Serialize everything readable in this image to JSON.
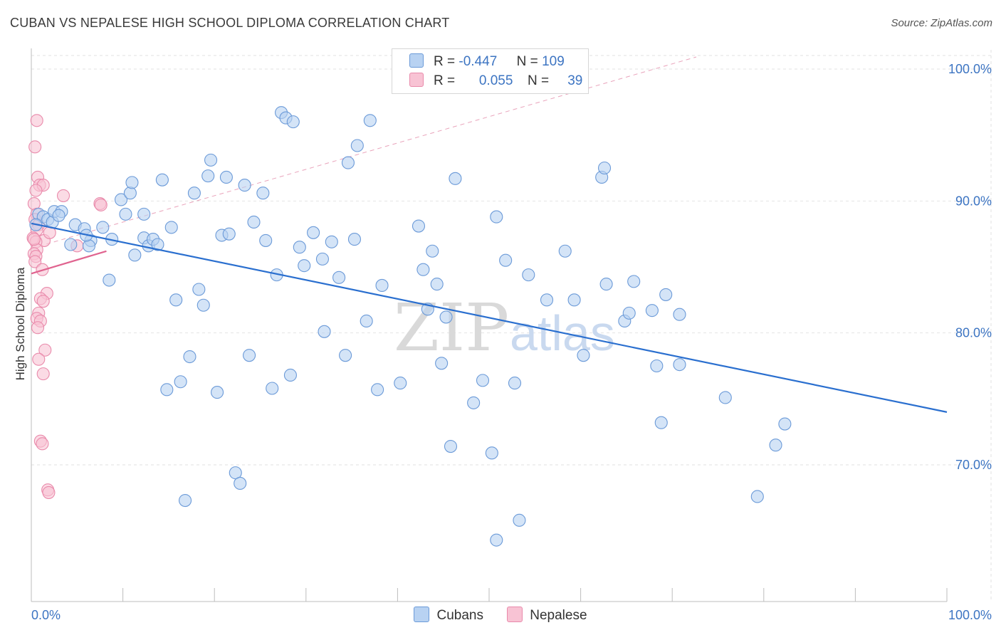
{
  "title": "CUBAN VS NEPALESE HIGH SCHOOL DIPLOMA CORRELATION CHART",
  "source": "Source: ZipAtlas.com",
  "watermark": {
    "zip": "ZIP",
    "atlas": "atlas"
  },
  "legend": {
    "rows": [
      {
        "r_label": "R =",
        "r_value": "-0.447",
        "n_label": "N =",
        "n_value": "109"
      },
      {
        "r_label": "R =",
        "r_value": "0.055",
        "n_label": "N =",
        "n_value": "39"
      }
    ]
  },
  "colors": {
    "cubans_fill": "#b8d2f2",
    "cubans_stroke": "#6b9ad8",
    "cubans_line": "#2a6fcf",
    "nepalese_fill": "#f8c3d4",
    "nepalese_stroke": "#e98aab",
    "nepalese_line": "#e0638f",
    "grid": "#e2e2e2",
    "tick_text": "#3c74c2"
  },
  "chart_data": {
    "type": "scatter",
    "ylabel": "High School Diploma",
    "xlim": [
      0,
      100
    ],
    "ylim": [
      61,
      101
    ],
    "x_tick_labels": {
      "left": "0.0%",
      "right": "100.0%"
    },
    "y_ticks": [
      {
        "value": 100,
        "label": "100.0%"
      },
      {
        "value": 90,
        "label": "90.0%"
      },
      {
        "value": 80,
        "label": "80.0%"
      },
      {
        "value": 70,
        "label": "70.0%"
      }
    ],
    "grid": true,
    "legend_position": "top-center",
    "series": [
      {
        "name": "Cubans",
        "trend": {
          "x1": 0,
          "y1": 88.3,
          "x2": 100,
          "y2": 74.0
        },
        "points": [
          [
            0.8,
            89.0
          ],
          [
            1.3,
            88.8
          ],
          [
            1.8,
            88.6
          ],
          [
            2.3,
            88.4
          ],
          [
            0.5,
            88.2
          ],
          [
            2.5,
            89.2
          ],
          [
            3.3,
            89.2
          ],
          [
            4.8,
            88.2
          ],
          [
            5.8,
            87.9
          ],
          [
            7.8,
            88.0
          ],
          [
            4.3,
            86.7
          ],
          [
            6.5,
            87.0
          ],
          [
            6.3,
            86.6
          ],
          [
            8.8,
            87.1
          ],
          [
            8.5,
            84.0
          ],
          [
            9.8,
            90.1
          ],
          [
            10.3,
            89.0
          ],
          [
            10.8,
            90.6
          ],
          [
            11.0,
            91.4
          ],
          [
            11.3,
            85.9
          ],
          [
            12.3,
            89.0
          ],
          [
            12.3,
            87.2
          ],
          [
            12.8,
            86.6
          ],
          [
            13.3,
            87.1
          ],
          [
            13.8,
            86.7
          ],
          [
            14.3,
            91.6
          ],
          [
            15.3,
            88.0
          ],
          [
            14.8,
            75.7
          ],
          [
            15.8,
            82.5
          ],
          [
            16.3,
            76.3
          ],
          [
            16.8,
            67.3
          ],
          [
            17.3,
            78.2
          ],
          [
            17.8,
            90.6
          ],
          [
            18.3,
            83.3
          ],
          [
            18.8,
            82.1
          ],
          [
            19.3,
            91.9
          ],
          [
            19.6,
            93.1
          ],
          [
            20.3,
            75.5
          ],
          [
            20.8,
            87.4
          ],
          [
            21.3,
            91.8
          ],
          [
            21.6,
            87.5
          ],
          [
            22.3,
            69.4
          ],
          [
            22.8,
            68.6
          ],
          [
            23.3,
            91.2
          ],
          [
            23.8,
            78.3
          ],
          [
            24.3,
            88.4
          ],
          [
            25.3,
            90.6
          ],
          [
            25.6,
            87.0
          ],
          [
            26.3,
            75.8
          ],
          [
            26.8,
            84.4
          ],
          [
            27.3,
            96.7
          ],
          [
            27.8,
            96.3
          ],
          [
            28.3,
            76.8
          ],
          [
            28.6,
            96.0
          ],
          [
            29.3,
            86.5
          ],
          [
            29.8,
            85.1
          ],
          [
            30.8,
            87.6
          ],
          [
            31.8,
            85.6
          ],
          [
            32.0,
            80.1
          ],
          [
            32.8,
            86.9
          ],
          [
            33.6,
            84.2
          ],
          [
            34.3,
            78.3
          ],
          [
            34.6,
            92.9
          ],
          [
            35.3,
            87.1
          ],
          [
            35.6,
            94.2
          ],
          [
            36.6,
            80.9
          ],
          [
            37.8,
            75.7
          ],
          [
            38.3,
            83.6
          ],
          [
            40.3,
            76.2
          ],
          [
            42.3,
            88.1
          ],
          [
            42.8,
            84.8
          ],
          [
            43.3,
            81.8
          ],
          [
            43.8,
            86.2
          ],
          [
            44.3,
            83.7
          ],
          [
            44.8,
            77.7
          ],
          [
            45.3,
            81.2
          ],
          [
            45.8,
            71.4
          ],
          [
            46.3,
            91.7
          ],
          [
            48.3,
            74.7
          ],
          [
            49.3,
            76.4
          ],
          [
            50.3,
            70.9
          ],
          [
            50.8,
            88.8
          ],
          [
            51.8,
            85.5
          ],
          [
            52.8,
            76.2
          ],
          [
            53.3,
            65.8
          ],
          [
            54.3,
            84.4
          ],
          [
            56.3,
            82.5
          ],
          [
            58.3,
            86.2
          ],
          [
            60.3,
            78.3
          ],
          [
            62.3,
            91.8
          ],
          [
            62.6,
            92.5
          ],
          [
            62.8,
            83.7
          ],
          [
            64.8,
            80.9
          ],
          [
            65.3,
            81.5
          ],
          [
            65.8,
            83.9
          ],
          [
            67.8,
            81.7
          ],
          [
            68.3,
            77.5
          ],
          [
            68.8,
            73.2
          ],
          [
            69.3,
            82.9
          ],
          [
            70.8,
            81.4
          ],
          [
            70.8,
            77.6
          ],
          [
            75.8,
            75.1
          ],
          [
            79.3,
            67.6
          ],
          [
            81.3,
            71.5
          ],
          [
            82.3,
            73.1
          ],
          [
            50.8,
            64.3
          ],
          [
            59.3,
            82.5
          ],
          [
            3.0,
            88.9
          ],
          [
            37.0,
            96.1
          ],
          [
            6.0,
            87.4
          ]
        ]
      },
      {
        "name": "Nepalese",
        "trend": {
          "x1": 0,
          "y1": 84.5,
          "x2": 8.2,
          "y2": 86.2
        },
        "points": [
          [
            0.6,
            96.1
          ],
          [
            0.4,
            94.1
          ],
          [
            0.7,
            91.8
          ],
          [
            0.9,
            91.2
          ],
          [
            1.3,
            91.2
          ],
          [
            0.5,
            90.8
          ],
          [
            0.3,
            89.8
          ],
          [
            0.6,
            89.0
          ],
          [
            0.4,
            88.6
          ],
          [
            0.8,
            88.2
          ],
          [
            0.6,
            87.8
          ],
          [
            0.2,
            87.2
          ],
          [
            1.4,
            87.0
          ],
          [
            0.5,
            86.9
          ],
          [
            0.6,
            86.3
          ],
          [
            0.3,
            86.0
          ],
          [
            0.5,
            85.8
          ],
          [
            0.4,
            85.4
          ],
          [
            1.2,
            84.8
          ],
          [
            3.5,
            90.4
          ],
          [
            7.5,
            89.8
          ],
          [
            7.6,
            89.7
          ],
          [
            2.0,
            87.6
          ],
          [
            5.0,
            86.6
          ],
          [
            1.7,
            83.0
          ],
          [
            1.0,
            82.6
          ],
          [
            1.3,
            82.4
          ],
          [
            0.8,
            81.5
          ],
          [
            0.6,
            81.1
          ],
          [
            1.0,
            80.9
          ],
          [
            0.7,
            80.4
          ],
          [
            1.5,
            78.7
          ],
          [
            0.8,
            78.0
          ],
          [
            1.3,
            76.9
          ],
          [
            1.0,
            71.8
          ],
          [
            1.2,
            71.6
          ],
          [
            1.8,
            68.1
          ],
          [
            1.9,
            67.9
          ],
          [
            0.3,
            87.1
          ]
        ]
      }
    ]
  }
}
